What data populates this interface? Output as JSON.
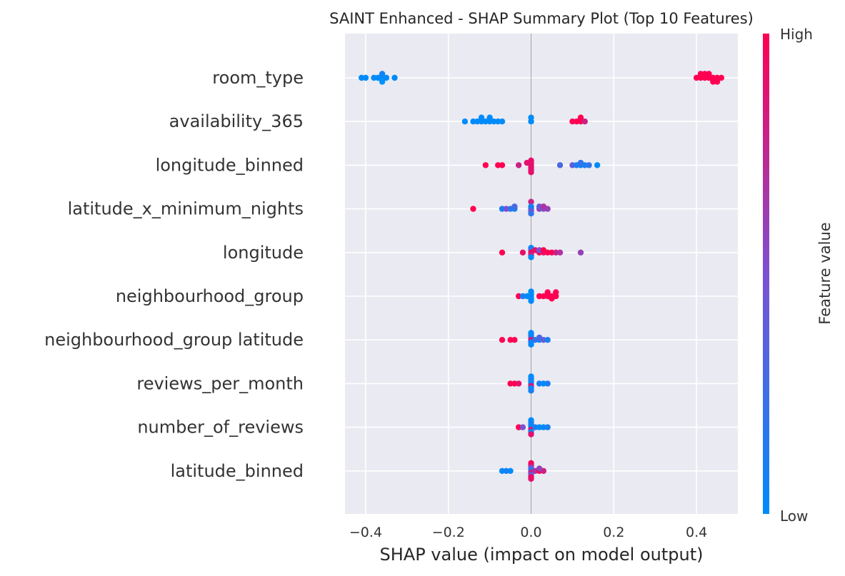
{
  "chart_data": {
    "type": "scatter",
    "title": "SAINT Enhanced - SHAP Summary Plot (Top 10 Features)",
    "xlabel": "SHAP value (impact on model output)",
    "xlim": [
      -0.45,
      0.5
    ],
    "xticks": [
      -0.4,
      -0.2,
      0.0,
      0.2,
      0.4
    ],
    "xtick_labels": [
      "−0.4",
      "−0.2",
      "0.0",
      "0.2",
      "0.4"
    ],
    "grid": true,
    "colorbar": {
      "label": "Feature value",
      "high_label": "High",
      "low_label": "Low",
      "low_color": "#008bfb",
      "mid_color": "#7c51d2",
      "high_color": "#ff0052"
    },
    "features": [
      {
        "name": "room_type",
        "points": [
          [
            -0.41,
            0.0
          ],
          [
            -0.4,
            0.0
          ],
          [
            -0.38,
            0.0
          ],
          [
            -0.37,
            0.0
          ],
          [
            -0.36,
            0.0
          ],
          [
            -0.35,
            0.0
          ],
          [
            -0.33,
            0.0
          ],
          [
            -0.36,
            0.07
          ],
          [
            -0.36,
            -0.07
          ],
          [
            -0.37,
            0.0
          ],
          [
            0.4,
            1.0
          ],
          [
            0.41,
            1.0
          ],
          [
            0.42,
            1.0
          ],
          [
            0.43,
            1.0
          ],
          [
            0.44,
            1.0
          ],
          [
            0.45,
            1.0
          ],
          [
            0.46,
            1.0
          ],
          [
            0.42,
            1.0
          ],
          [
            0.43,
            1.0
          ],
          [
            0.41,
            1.0
          ],
          [
            0.44,
            1.0
          ],
          [
            0.45,
            1.0
          ]
        ],
        "offsets": [
          0,
          0,
          0,
          0,
          0,
          0,
          0,
          0.5,
          -0.5,
          0,
          0,
          0,
          0,
          0,
          0,
          0,
          0,
          0.5,
          0.5,
          0.5,
          -0.5,
          -0.5
        ]
      },
      {
        "name": "availability_365",
        "points": [
          [
            -0.16,
            0.0
          ],
          [
            -0.14,
            0.0
          ],
          [
            -0.13,
            0.0
          ],
          [
            -0.12,
            0.0
          ],
          [
            -0.11,
            0.0
          ],
          [
            -0.1,
            0.0
          ],
          [
            -0.09,
            0.0
          ],
          [
            -0.08,
            0.0
          ],
          [
            -0.07,
            0.0
          ],
          [
            -0.1,
            0.0
          ],
          [
            -0.12,
            0.0
          ],
          [
            0.0,
            0.0
          ],
          [
            0.0,
            0.0
          ],
          [
            0.1,
            1.0
          ],
          [
            0.11,
            1.0
          ],
          [
            0.12,
            1.0
          ],
          [
            0.13,
            0.8
          ],
          [
            0.12,
            1.0
          ]
        ],
        "offsets": [
          0,
          0,
          0,
          0,
          0,
          0,
          0,
          0,
          0,
          0.5,
          0.5,
          0.5,
          0,
          0,
          0,
          0,
          0,
          0.5
        ]
      },
      {
        "name": "longitude_binned",
        "points": [
          [
            -0.11,
            1.0
          ],
          [
            -0.08,
            1.0
          ],
          [
            -0.07,
            1.0
          ],
          [
            -0.03,
            0.8
          ],
          [
            -0.01,
            0.9
          ],
          [
            0.0,
            0.9
          ],
          [
            0.0,
            0.9
          ],
          [
            0.0,
            0.9
          ],
          [
            0.0,
            0.9
          ],
          [
            0.0,
            0.9
          ],
          [
            0.0,
            0.9
          ],
          [
            0.07,
            0.3
          ],
          [
            0.1,
            0.4
          ],
          [
            0.11,
            0.1
          ],
          [
            0.12,
            0.1
          ],
          [
            0.13,
            0.1
          ],
          [
            0.14,
            0.2
          ],
          [
            0.16,
            0.0
          ],
          [
            0.12,
            0.2
          ]
        ],
        "offsets": [
          0,
          0,
          0,
          0,
          0.3,
          -0.3,
          -0.6,
          0.3,
          0.6,
          0,
          -0.9,
          0,
          0,
          0,
          0,
          0,
          0,
          0,
          0.3
        ]
      },
      {
        "name": "latitude_x_minimum_nights",
        "points": [
          [
            -0.14,
            1.0
          ],
          [
            -0.07,
            0.1
          ],
          [
            -0.06,
            0.5
          ],
          [
            -0.05,
            0.2
          ],
          [
            -0.04,
            0.1
          ],
          [
            -0.04,
            0.3
          ],
          [
            0.0,
            0.8
          ],
          [
            0.0,
            0.1
          ],
          [
            0.0,
            0.1
          ],
          [
            0.0,
            0.5
          ],
          [
            0.0,
            0.2
          ],
          [
            0.02,
            0.6
          ],
          [
            0.03,
            0.5
          ],
          [
            0.04,
            0.6
          ],
          [
            0.02,
            0.4
          ],
          [
            0.03,
            0.7
          ]
        ],
        "offsets": [
          0,
          0,
          0,
          0,
          0,
          0.3,
          0.9,
          0.3,
          0,
          -0.3,
          -0.6,
          0,
          0,
          0,
          0.3,
          0.3
        ]
      },
      {
        "name": "longitude",
        "points": [
          [
            -0.07,
            1.0
          ],
          [
            -0.02,
            0.9
          ],
          [
            0.0,
            0.0
          ],
          [
            0.0,
            0.2
          ],
          [
            0.0,
            1.0
          ],
          [
            0.0,
            0.8
          ],
          [
            0.0,
            0.0
          ],
          [
            0.01,
            0.9
          ],
          [
            0.02,
            1.0
          ],
          [
            0.03,
            0.9
          ],
          [
            0.04,
            1.0
          ],
          [
            0.05,
            1.0
          ],
          [
            0.06,
            0.8
          ],
          [
            0.07,
            0.7
          ],
          [
            0.12,
            0.6
          ],
          [
            0.02,
            0.5
          ],
          [
            0.03,
            1.0
          ]
        ],
        "offsets": [
          0,
          0,
          0.6,
          0.3,
          0,
          -0.3,
          -0.6,
          0.3,
          0,
          0,
          0,
          0,
          0,
          0,
          0,
          0.3,
          0.3
        ]
      },
      {
        "name": "neighbourhood_group",
        "points": [
          [
            -0.03,
            1.0
          ],
          [
            -0.02,
            0.1
          ],
          [
            -0.01,
            0.0
          ],
          [
            0.0,
            0.0
          ],
          [
            0.0,
            0.0
          ],
          [
            0.0,
            0.0
          ],
          [
            0.0,
            0.0
          ],
          [
            0.0,
            0.0
          ],
          [
            0.02,
            1.0
          ],
          [
            0.03,
            1.0
          ],
          [
            0.04,
            1.0
          ],
          [
            0.05,
            1.0
          ],
          [
            0.06,
            1.0
          ],
          [
            0.04,
            1.0
          ],
          [
            0.06,
            1.0
          ],
          [
            0.05,
            1.0
          ]
        ],
        "offsets": [
          0,
          0,
          0,
          0.6,
          0.3,
          0,
          -0.3,
          -0.6,
          0,
          0,
          0,
          0,
          0,
          0.5,
          0.5,
          -0.3
        ]
      },
      {
        "name": "neighbourhood_group latitude",
        "points": [
          [
            -0.07,
            1.0
          ],
          [
            -0.05,
            1.0
          ],
          [
            -0.04,
            1.0
          ],
          [
            0.0,
            0.0
          ],
          [
            0.0,
            0.0
          ],
          [
            0.0,
            0.1
          ],
          [
            0.0,
            0.9
          ],
          [
            0.0,
            0.1
          ],
          [
            0.0,
            0.0
          ],
          [
            0.01,
            0.2
          ],
          [
            0.02,
            0.1
          ],
          [
            0.03,
            0.4
          ],
          [
            0.04,
            0.1
          ],
          [
            0.02,
            0.3
          ]
        ],
        "offsets": [
          0,
          0,
          0,
          0.9,
          0.6,
          0.3,
          0,
          -0.3,
          -0.6,
          0,
          0,
          0,
          0,
          0.3
        ]
      },
      {
        "name": "reviews_per_month",
        "points": [
          [
            -0.05,
            1.0
          ],
          [
            -0.04,
            1.0
          ],
          [
            -0.03,
            0.9
          ],
          [
            0.0,
            0.0
          ],
          [
            0.0,
            0.0
          ],
          [
            0.0,
            0.1
          ],
          [
            0.0,
            0.0
          ],
          [
            0.0,
            0.9
          ],
          [
            0.0,
            0.0
          ],
          [
            0.0,
            0.1
          ],
          [
            0.02,
            0.1
          ],
          [
            0.03,
            0.0
          ],
          [
            0.04,
            0.1
          ]
        ],
        "offsets": [
          0,
          0,
          0,
          0.9,
          0.6,
          0.3,
          0,
          -0.3,
          -0.6,
          -0.9,
          0,
          0,
          0
        ]
      },
      {
        "name": "number_of_reviews",
        "points": [
          [
            -0.03,
            1.0
          ],
          [
            -0.02,
            0.5
          ],
          [
            0.0,
            0.0
          ],
          [
            0.0,
            0.0
          ],
          [
            0.0,
            0.1
          ],
          [
            0.0,
            0.0
          ],
          [
            0.0,
            0.9
          ],
          [
            0.0,
            0.0
          ],
          [
            0.0,
            0.9
          ],
          [
            0.01,
            0.1
          ],
          [
            0.02,
            0.0
          ],
          [
            0.03,
            0.0
          ],
          [
            0.04,
            0.1
          ]
        ],
        "offsets": [
          0,
          0,
          0.9,
          0.6,
          0.3,
          0,
          -0.3,
          -0.6,
          -0.9,
          0,
          0,
          0,
          0
        ]
      },
      {
        "name": "latitude_binned",
        "points": [
          [
            -0.07,
            0.0
          ],
          [
            -0.06,
            0.1
          ],
          [
            -0.05,
            0.0
          ],
          [
            0.0,
            1.0
          ],
          [
            0.0,
            0.9
          ],
          [
            0.0,
            0.5
          ],
          [
            0.0,
            0.1
          ],
          [
            0.0,
            0.8
          ],
          [
            0.0,
            0.4
          ],
          [
            0.0,
            1.0
          ],
          [
            0.0,
            0.9
          ],
          [
            0.01,
            0.7
          ],
          [
            0.02,
            1.0
          ],
          [
            0.03,
            0.8
          ],
          [
            0.02,
            0.6
          ]
        ],
        "offsets": [
          0,
          0,
          0,
          1.0,
          0.7,
          0.4,
          0.1,
          -0.2,
          -0.5,
          -0.8,
          -1.0,
          0,
          0,
          0,
          0.3
        ]
      }
    ]
  }
}
